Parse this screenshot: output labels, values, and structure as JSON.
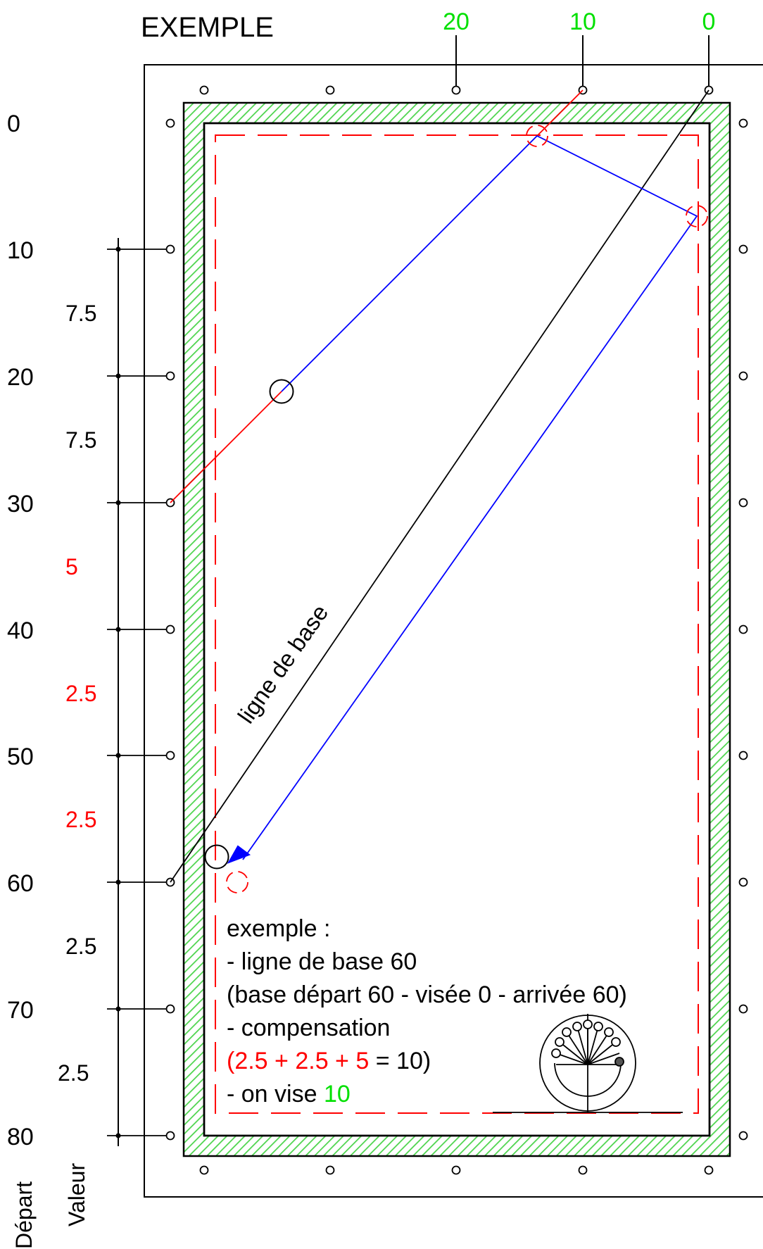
{
  "title": "EXEMPLE",
  "colors": {
    "red": "#ff0000",
    "green": "#00e000",
    "blue": "#0000ff",
    "black": "#000000",
    "hatch": "#4cd44c"
  },
  "top_scale": [
    {
      "label": "20"
    },
    {
      "label": "10"
    },
    {
      "label": "0"
    }
  ],
  "left_scale": [
    {
      "depart": "0"
    },
    {
      "depart": "10"
    },
    {
      "depart": "20"
    },
    {
      "depart": "30"
    },
    {
      "depart": "40"
    },
    {
      "depart": "50"
    },
    {
      "depart": "60"
    },
    {
      "depart": "70"
    },
    {
      "depart": "80"
    }
  ],
  "valeur_labels": [
    {
      "text": "7.5",
      "color": "black"
    },
    {
      "text": "7.5",
      "color": "black"
    },
    {
      "text": "5",
      "color": "red"
    },
    {
      "text": "2.5",
      "color": "red"
    },
    {
      "text": "2.5",
      "color": "red"
    },
    {
      "text": "2.5",
      "color": "black"
    },
    {
      "text": "2.5",
      "color": "black"
    }
  ],
  "axis_labels": {
    "depart": "Départ",
    "valeur": "Valeur"
  },
  "base_line_label": "ligne de base",
  "note": {
    "line1": "exemple :",
    "line2": "- ligne de base 60",
    "line3": "(base départ 60 - visée 0 - arrivée 60)",
    "line4": "- compensation",
    "line5_open": "(",
    "line5_a": "2.5",
    "line5_plus1": " + ",
    "line5_b": "2.5",
    "line5_plus2": " + ",
    "line5_c": "5",
    "line5_end": " = 10)",
    "line6_prefix": "- on vise ",
    "line6_value": "10"
  },
  "logo": "billiard-logo"
}
